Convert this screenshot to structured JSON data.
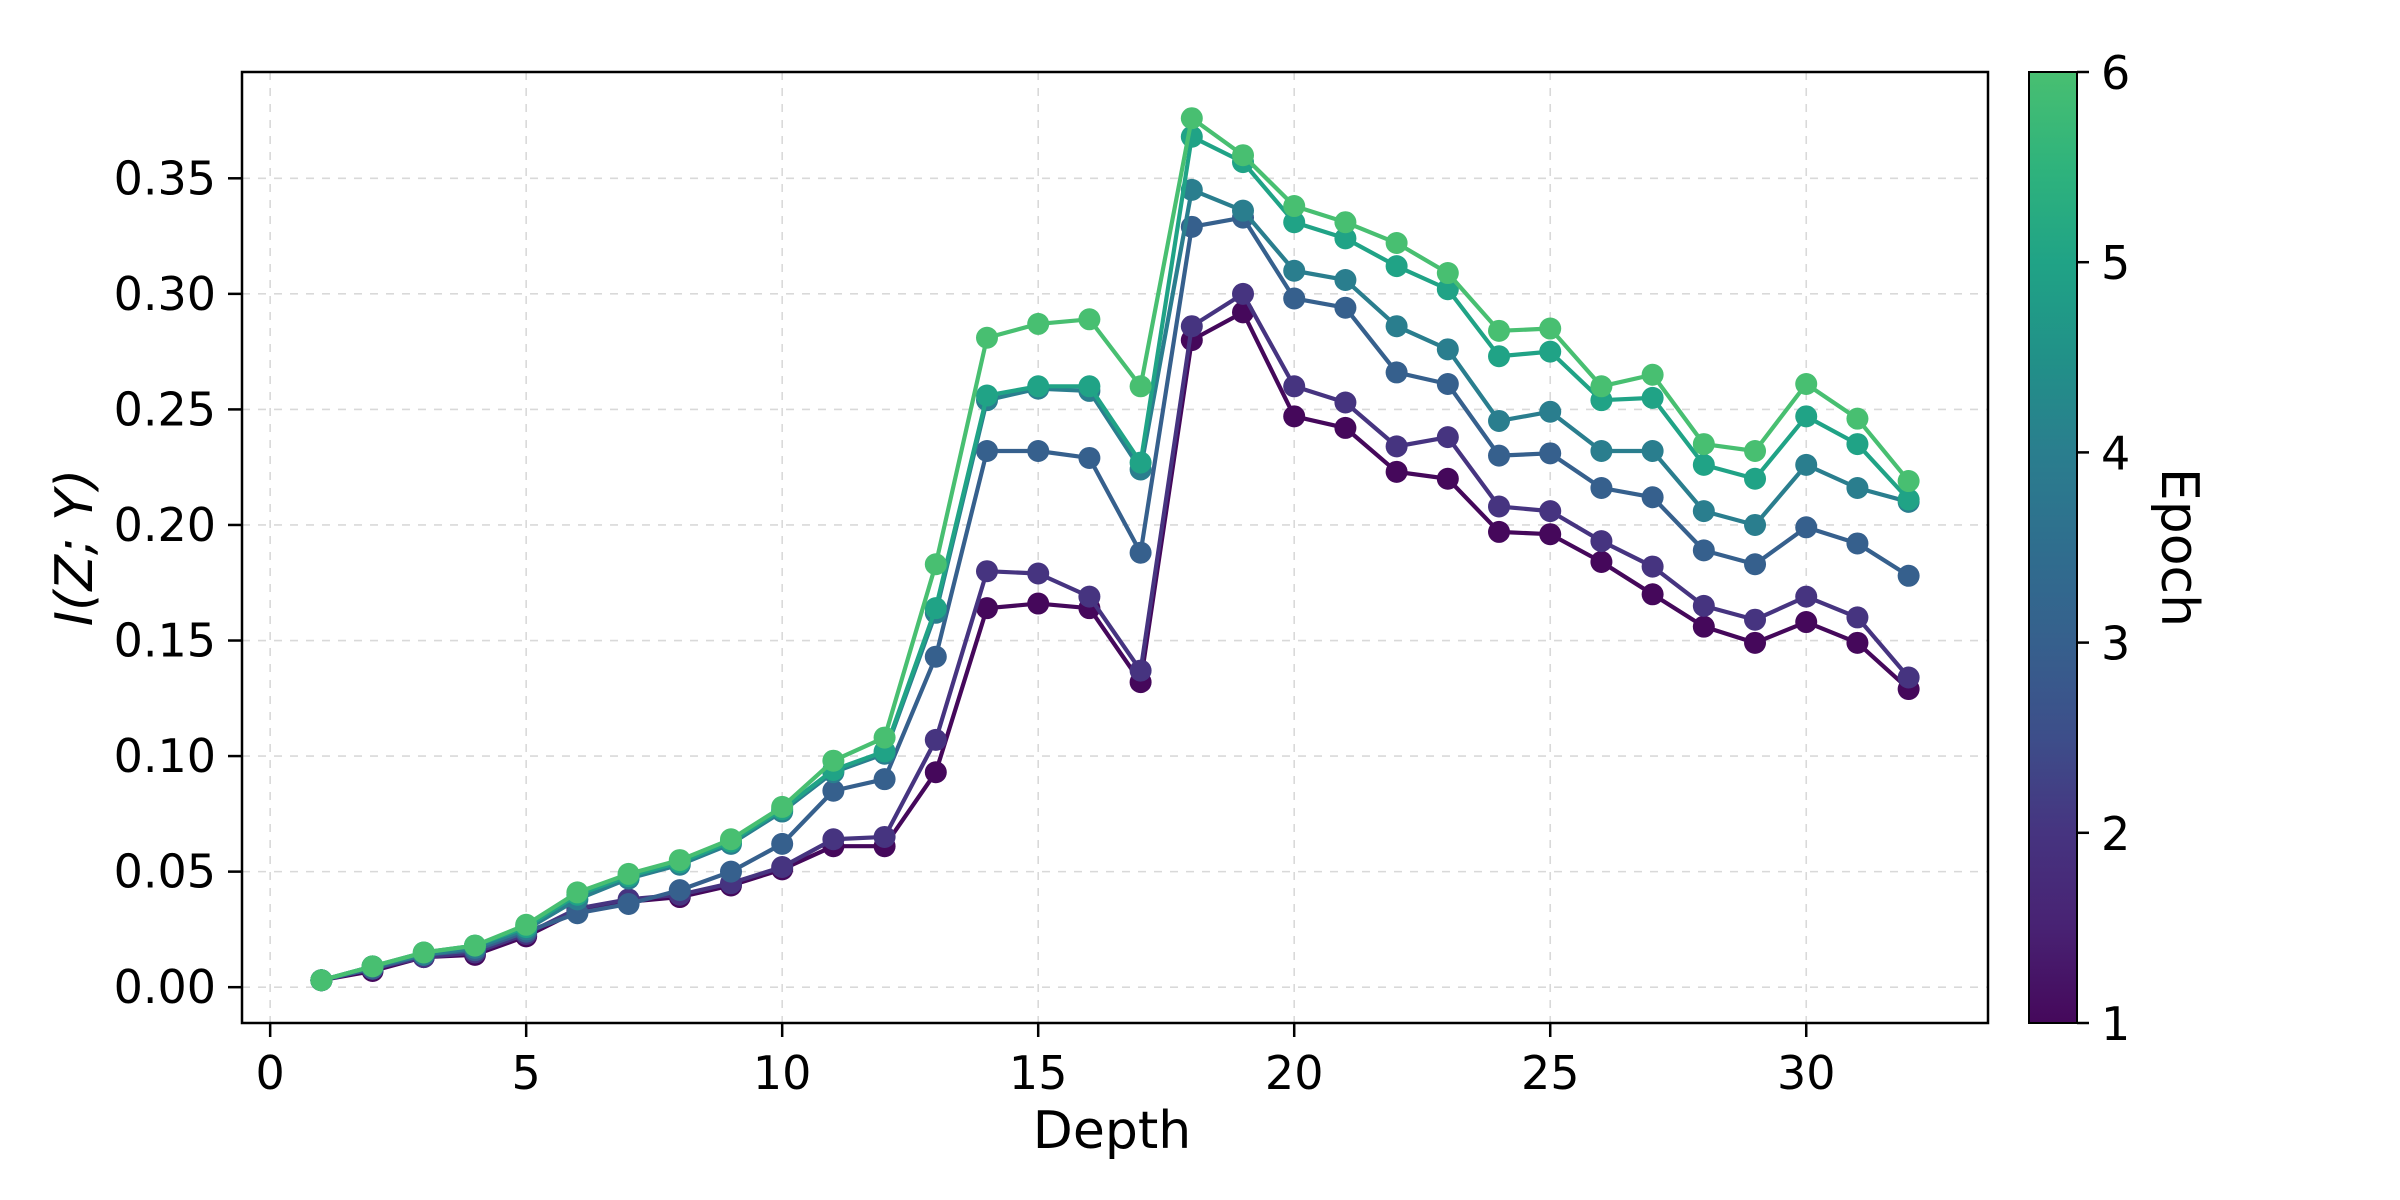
{
  "figure": {
    "background": "#ffffff",
    "kind": "matplotlib-style line chart with colorbar"
  },
  "chart_data": {
    "type": "line",
    "title": "",
    "xlabel": "Depth",
    "ylabel": "I(Z; Y)",
    "x": [
      1,
      2,
      3,
      4,
      5,
      6,
      7,
      8,
      9,
      10,
      11,
      12,
      13,
      14,
      15,
      16,
      17,
      18,
      19,
      20,
      21,
      22,
      23,
      24,
      25,
      26,
      27,
      28,
      29,
      30,
      31,
      32
    ],
    "series": [
      {
        "name": "Epoch 1",
        "epoch": 1,
        "color": "#45085b",
        "values": [
          0.003,
          0.007,
          0.013,
          0.014,
          0.022,
          0.033,
          0.037,
          0.039,
          0.044,
          0.051,
          0.061,
          0.061,
          0.093,
          0.164,
          0.166,
          0.164,
          0.132,
          0.28,
          0.292,
          0.247,
          0.242,
          0.223,
          0.22,
          0.197,
          0.196,
          0.184,
          0.17,
          0.156,
          0.149,
          0.158,
          0.149,
          0.129
        ]
      },
      {
        "name": "Epoch 2",
        "epoch": 2,
        "color": "#463480",
        "values": [
          0.003,
          0.008,
          0.013,
          0.015,
          0.023,
          0.034,
          0.038,
          0.04,
          0.045,
          0.052,
          0.064,
          0.065,
          0.107,
          0.18,
          0.179,
          0.169,
          0.137,
          0.286,
          0.3,
          0.26,
          0.253,
          0.234,
          0.238,
          0.208,
          0.206,
          0.193,
          0.182,
          0.165,
          0.159,
          0.169,
          0.16,
          0.134
        ]
      },
      {
        "name": "Epoch 3",
        "epoch": 3,
        "color": "#36608d",
        "values": [
          0.003,
          0.008,
          0.014,
          0.016,
          0.024,
          0.032,
          0.036,
          0.042,
          0.05,
          0.062,
          0.085,
          0.09,
          0.143,
          0.232,
          0.232,
          0.229,
          0.188,
          0.329,
          0.333,
          0.298,
          0.294,
          0.266,
          0.261,
          0.23,
          0.231,
          0.216,
          0.212,
          0.189,
          0.183,
          0.199,
          0.192,
          0.178
        ]
      },
      {
        "name": "Epoch 4",
        "epoch": 4,
        "color": "#2a7e8e",
        "values": [
          0.003,
          0.009,
          0.014,
          0.017,
          0.025,
          0.038,
          0.047,
          0.053,
          0.062,
          0.076,
          0.093,
          0.101,
          0.162,
          0.254,
          0.259,
          0.258,
          0.224,
          0.345,
          0.336,
          0.31,
          0.306,
          0.286,
          0.276,
          0.245,
          0.249,
          0.232,
          0.232,
          0.206,
          0.2,
          0.226,
          0.216,
          0.21
        ]
      },
      {
        "name": "Epoch 5",
        "epoch": 5,
        "color": "#20a386",
        "values": [
          0.003,
          0.009,
          0.015,
          0.018,
          0.026,
          0.04,
          0.048,
          0.054,
          0.063,
          0.077,
          0.094,
          0.102,
          0.164,
          0.256,
          0.26,
          0.26,
          0.227,
          0.368,
          0.357,
          0.331,
          0.324,
          0.312,
          0.302,
          0.273,
          0.275,
          0.254,
          0.255,
          0.226,
          0.22,
          0.247,
          0.235,
          0.211
        ]
      },
      {
        "name": "Epoch 6",
        "epoch": 6,
        "color": "#48bf71",
        "values": [
          0.003,
          0.009,
          0.015,
          0.018,
          0.027,
          0.041,
          0.049,
          0.055,
          0.064,
          0.078,
          0.098,
          0.108,
          0.183,
          0.281,
          0.287,
          0.289,
          0.26,
          0.376,
          0.36,
          0.338,
          0.331,
          0.322,
          0.309,
          0.284,
          0.285,
          0.26,
          0.265,
          0.235,
          0.232,
          0.261,
          0.246,
          0.219
        ]
      }
    ],
    "x_ticks": [
      0,
      5,
      10,
      15,
      20,
      25,
      30
    ],
    "y_ticks": [
      0.0,
      0.05,
      0.1,
      0.15,
      0.2,
      0.25,
      0.3,
      0.35
    ],
    "y_tick_decimals": 2,
    "xlim": [
      -0.55,
      33.55
    ],
    "ylim": [
      -0.0155,
      0.396
    ],
    "grid": true,
    "grid_color": "#d9d9d9",
    "legend_position": "none",
    "colorbar": {
      "label": "Epoch",
      "min": 1,
      "max": 6,
      "ticks": [
        1,
        2,
        3,
        4,
        5,
        6
      ],
      "gradient_stops": [
        {
          "at": 0.0,
          "color": "#45085b"
        },
        {
          "at": 0.1,
          "color": "#482273"
        },
        {
          "at": 0.2,
          "color": "#463480"
        },
        {
          "at": 0.3,
          "color": "#3d4e8a"
        },
        {
          "at": 0.4,
          "color": "#36608d"
        },
        {
          "at": 0.5,
          "color": "#2f6e8e"
        },
        {
          "at": 0.6,
          "color": "#2a7e8e"
        },
        {
          "at": 0.7,
          "color": "#219188"
        },
        {
          "at": 0.8,
          "color": "#20a386"
        },
        {
          "at": 0.9,
          "color": "#2fb37c"
        },
        {
          "at": 1.0,
          "color": "#48bf71"
        }
      ]
    },
    "style": {
      "line_width": 4.2,
      "marker_radius": 11,
      "spine_color": "#000000",
      "tick_font_size": 46,
      "label_font_size": 52
    }
  }
}
